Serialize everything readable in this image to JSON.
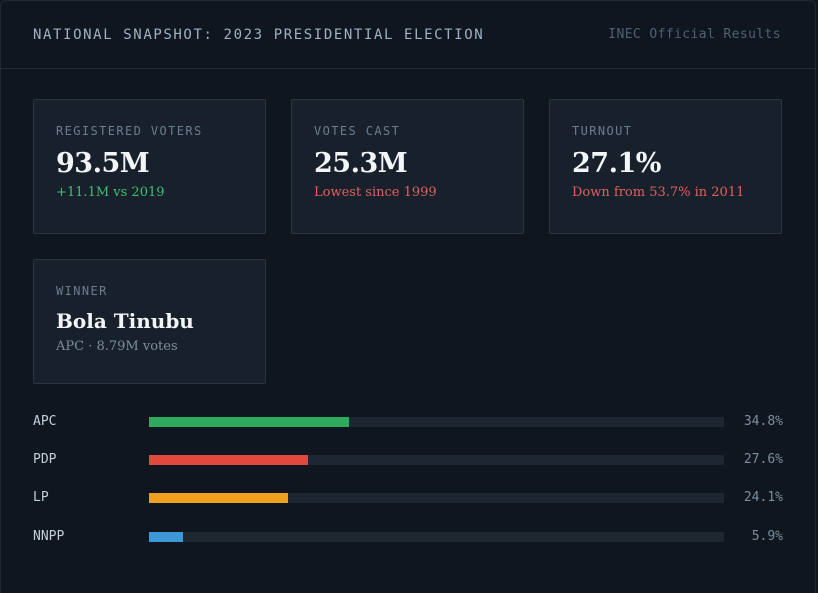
{
  "header": {
    "title": "NATIONAL SNAPSHOT: 2023 PRESIDENTIAL ELECTION",
    "source": "INEC Official Results"
  },
  "cards": {
    "registered": {
      "label": "REGISTERED VOTERS",
      "value": "93.5M",
      "sub": "+11.1M vs 2019",
      "sub_tone": "positive"
    },
    "cast": {
      "label": "VOTES CAST",
      "value": "25.3M",
      "sub": "Lowest since 1999",
      "sub_tone": "negative"
    },
    "turnout": {
      "label": "TURNOUT",
      "value": "27.1%",
      "sub": "Down from 53.7% in 2011",
      "sub_tone": "negative"
    },
    "winner": {
      "label": "WINNER",
      "value": "Bola Tinubu",
      "sub": "APC · 8.79M votes"
    }
  },
  "results": [
    {
      "party": "APC",
      "percent_label": "34.8%",
      "share": 34.8,
      "color": "#2eaa5c"
    },
    {
      "party": "PDP",
      "percent_label": "27.6%",
      "share": 27.6,
      "color": "#e2483c"
    },
    {
      "party": "LP",
      "percent_label": "24.1%",
      "share": 24.1,
      "color": "#f0a01c"
    },
    {
      "party": "NNPP",
      "percent_label": "5.9%",
      "share": 5.9,
      "color": "#3d98d6"
    }
  ],
  "colors": {
    "background": "#0f1620",
    "card": "#18212b",
    "positive": "#3fbf72",
    "negative": "#e06060"
  }
}
